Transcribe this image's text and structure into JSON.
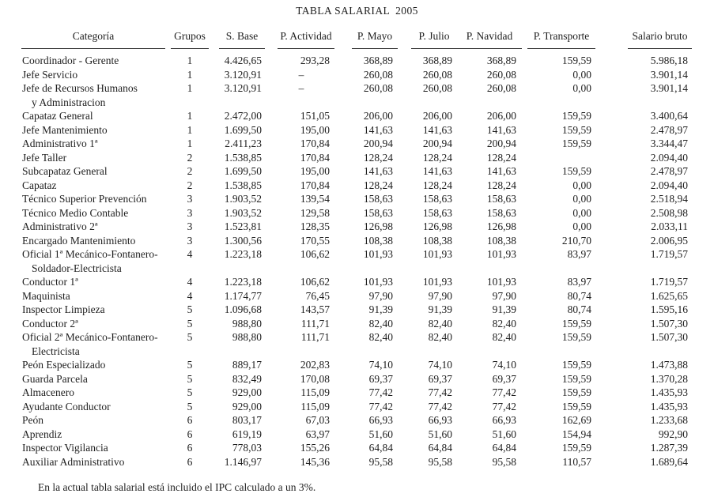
{
  "title": "TABLA SALARIAL  2005",
  "footnote": "En la actual tabla salarial está incluido el IPC calculado a un 3%.",
  "table": {
    "columns": [
      {
        "key": "categoria",
        "label": "Categoría"
      },
      {
        "key": "grupos",
        "label": "Grupos"
      },
      {
        "key": "s_base",
        "label": "S. Base"
      },
      {
        "key": "p_actividad",
        "label": "P. Actividad"
      },
      {
        "key": "p_mayo",
        "label": "P. Mayo"
      },
      {
        "key": "p_julio",
        "label": "P. Julio"
      },
      {
        "key": "p_navidad",
        "label": "P. Navidad"
      },
      {
        "key": "p_transporte",
        "label": "P. Transporte"
      },
      {
        "key": "salario_bruto",
        "label": "Salario bruto"
      }
    ],
    "rows": [
      {
        "categoria": "Coordinador - Gerente",
        "categoria2": "",
        "grupos": "1",
        "s_base": "4.426,65",
        "p_actividad": "293,28",
        "p_mayo": "368,89",
        "p_julio": "368,89",
        "p_navidad": "368,89",
        "p_transporte": "159,59",
        "salario_bruto": "5.986,18"
      },
      {
        "categoria": "Jefe Servicio",
        "categoria2": "",
        "grupos": "1",
        "s_base": "3.120,91",
        "p_actividad": "–",
        "p_mayo": "260,08",
        "p_julio": "260,08",
        "p_navidad": "260,08",
        "p_transporte": "0,00",
        "salario_bruto": "3.901,14"
      },
      {
        "categoria": "Jefe de Recursos Humanos",
        "categoria2": "y Administracion",
        "grupos": "1",
        "s_base": "3.120,91",
        "p_actividad": "–",
        "p_mayo": "260,08",
        "p_julio": "260,08",
        "p_navidad": "260,08",
        "p_transporte": "0,00",
        "salario_bruto": "3.901,14"
      },
      {
        "categoria": "Capataz General",
        "categoria2": "",
        "grupos": "1",
        "s_base": "2.472,00",
        "p_actividad": "151,05",
        "p_mayo": "206,00",
        "p_julio": "206,00",
        "p_navidad": "206,00",
        "p_transporte": "159,59",
        "salario_bruto": "3.400,64"
      },
      {
        "categoria": "Jefe Mantenimiento",
        "categoria2": "",
        "grupos": "1",
        "s_base": "1.699,50",
        "p_actividad": "195,00",
        "p_mayo": "141,63",
        "p_julio": "141,63",
        "p_navidad": "141,63",
        "p_transporte": "159,59",
        "salario_bruto": "2.478,97"
      },
      {
        "categoria": "Administrativo 1ª",
        "categoria2": "",
        "grupos": "1",
        "s_base": "2.411,23",
        "p_actividad": "170,84",
        "p_mayo": "200,94",
        "p_julio": "200,94",
        "p_navidad": "200,94",
        "p_transporte": "159,59",
        "salario_bruto": "3.344,47"
      },
      {
        "categoria": "Jefe Taller",
        "categoria2": "",
        "grupos": "2",
        "s_base": "1.538,85",
        "p_actividad": "170,84",
        "p_mayo": "128,24",
        "p_julio": "128,24",
        "p_navidad": "128,24",
        "p_transporte": "",
        "salario_bruto": "2.094,40"
      },
      {
        "categoria": "Subcapataz General",
        "categoria2": "",
        "grupos": "2",
        "s_base": "1.699,50",
        "p_actividad": "195,00",
        "p_mayo": "141,63",
        "p_julio": "141,63",
        "p_navidad": "141,63",
        "p_transporte": "159,59",
        "salario_bruto": "2.478,97"
      },
      {
        "categoria": "Capataz",
        "categoria2": "",
        "grupos": "2",
        "s_base": "1.538,85",
        "p_actividad": "170,84",
        "p_mayo": "128,24",
        "p_julio": "128,24",
        "p_navidad": "128,24",
        "p_transporte": "0,00",
        "salario_bruto": "2.094,40"
      },
      {
        "categoria": "Técnico Superior Prevención",
        "categoria2": "",
        "grupos": "3",
        "s_base": "1.903,52",
        "p_actividad": "139,54",
        "p_mayo": "158,63",
        "p_julio": "158,63",
        "p_navidad": "158,63",
        "p_transporte": "0,00",
        "salario_bruto": "2.518,94"
      },
      {
        "categoria": "Técnico Medio Contable",
        "categoria2": "",
        "grupos": "3",
        "s_base": "1.903,52",
        "p_actividad": "129,58",
        "p_mayo": "158,63",
        "p_julio": "158,63",
        "p_navidad": "158,63",
        "p_transporte": "0,00",
        "salario_bruto": "2.508,98"
      },
      {
        "categoria": "Administrativo 2ª",
        "categoria2": "",
        "grupos": "3",
        "s_base": "1.523,81",
        "p_actividad": "128,35",
        "p_mayo": "126,98",
        "p_julio": "126,98",
        "p_navidad": "126,98",
        "p_transporte": "0,00",
        "salario_bruto": "2.033,11"
      },
      {
        "categoria": "Encargado Mantenimiento",
        "categoria2": "",
        "grupos": "3",
        "s_base": "1.300,56",
        "p_actividad": "170,55",
        "p_mayo": "108,38",
        "p_julio": "108,38",
        "p_navidad": "108,38",
        "p_transporte": "210,70",
        "salario_bruto": "2.006,95"
      },
      {
        "categoria": "Oficial 1ª Mecánico-Fontanero-",
        "categoria2": "Soldador-Electricista",
        "grupos": "4",
        "s_base": "1.223,18",
        "p_actividad": "106,62",
        "p_mayo": "101,93",
        "p_julio": "101,93",
        "p_navidad": "101,93",
        "p_transporte": "83,97",
        "salario_bruto": "1.719,57"
      },
      {
        "categoria": "Conductor 1ª",
        "categoria2": "",
        "grupos": "4",
        "s_base": "1.223,18",
        "p_actividad": "106,62",
        "p_mayo": "101,93",
        "p_julio": "101,93",
        "p_navidad": "101,93",
        "p_transporte": "83,97",
        "salario_bruto": "1.719,57"
      },
      {
        "categoria": "Maquinista",
        "categoria2": "",
        "grupos": "4",
        "s_base": "1.174,77",
        "p_actividad": "76,45",
        "p_mayo": "97,90",
        "p_julio": "97,90",
        "p_navidad": "97,90",
        "p_transporte": "80,74",
        "salario_bruto": "1.625,65"
      },
      {
        "categoria": "Inspector Limpieza",
        "categoria2": "",
        "grupos": "5",
        "s_base": "1.096,68",
        "p_actividad": "143,57",
        "p_mayo": "91,39",
        "p_julio": "91,39",
        "p_navidad": "91,39",
        "p_transporte": "80,74",
        "salario_bruto": "1.595,16"
      },
      {
        "categoria": "Conductor 2ª",
        "categoria2": "",
        "grupos": "5",
        "s_base": "988,80",
        "p_actividad": "111,71",
        "p_mayo": "82,40",
        "p_julio": "82,40",
        "p_navidad": "82,40",
        "p_transporte": "159,59",
        "salario_bruto": "1.507,30"
      },
      {
        "categoria": "Oficial 2ª Mecánico-Fontanero-",
        "categoria2": "Electricista",
        "grupos": "5",
        "s_base": "988,80",
        "p_actividad": "111,71",
        "p_mayo": "82,40",
        "p_julio": "82,40",
        "p_navidad": "82,40",
        "p_transporte": "159,59",
        "salario_bruto": "1.507,30"
      },
      {
        "categoria": "Peón Especializado",
        "categoria2": "",
        "grupos": "5",
        "s_base": "889,17",
        "p_actividad": "202,83",
        "p_mayo": "74,10",
        "p_julio": "74,10",
        "p_navidad": "74,10",
        "p_transporte": "159,59",
        "salario_bruto": "1.473,88"
      },
      {
        "categoria": "Guarda Parcela",
        "categoria2": "",
        "grupos": "5",
        "s_base": "832,49",
        "p_actividad": "170,08",
        "p_mayo": "69,37",
        "p_julio": "69,37",
        "p_navidad": "69,37",
        "p_transporte": "159,59",
        "salario_bruto": "1.370,28"
      },
      {
        "categoria": "Almacenero",
        "categoria2": "",
        "grupos": "5",
        "s_base": "929,00",
        "p_actividad": "115,09",
        "p_mayo": "77,42",
        "p_julio": "77,42",
        "p_navidad": "77,42",
        "p_transporte": "159,59",
        "salario_bruto": "1.435,93"
      },
      {
        "categoria": "Ayudante Conductor",
        "categoria2": "",
        "grupos": "5",
        "s_base": "929,00",
        "p_actividad": "115,09",
        "p_mayo": "77,42",
        "p_julio": "77,42",
        "p_navidad": "77,42",
        "p_transporte": "159,59",
        "salario_bruto": "1.435,93"
      },
      {
        "categoria": "Peón",
        "categoria2": "",
        "grupos": "6",
        "s_base": "803,17",
        "p_actividad": "67,03",
        "p_mayo": "66,93",
        "p_julio": "66,93",
        "p_navidad": "66,93",
        "p_transporte": "162,69",
        "salario_bruto": "1.233,68"
      },
      {
        "categoria": "Aprendiz",
        "categoria2": "",
        "grupos": "6",
        "s_base": "619,19",
        "p_actividad": "63,97",
        "p_mayo": "51,60",
        "p_julio": "51,60",
        "p_navidad": "51,60",
        "p_transporte": "154,94",
        "salario_bruto": "992,90"
      },
      {
        "categoria": "Inspector Vigilancia",
        "categoria2": "",
        "grupos": "6",
        "s_base": "778,03",
        "p_actividad": "155,26",
        "p_mayo": "64,84",
        "p_julio": "64,84",
        "p_navidad": "64,84",
        "p_transporte": "159,59",
        "salario_bruto": "1.287,39"
      },
      {
        "categoria": "Auxiliar Administrativo",
        "categoria2": "",
        "grupos": "6",
        "s_base": "1.146,97",
        "p_actividad": "145,36",
        "p_mayo": "95,58",
        "p_julio": "95,58",
        "p_navidad": "95,58",
        "p_transporte": "110,57",
        "salario_bruto": "1.689,64"
      }
    ]
  }
}
